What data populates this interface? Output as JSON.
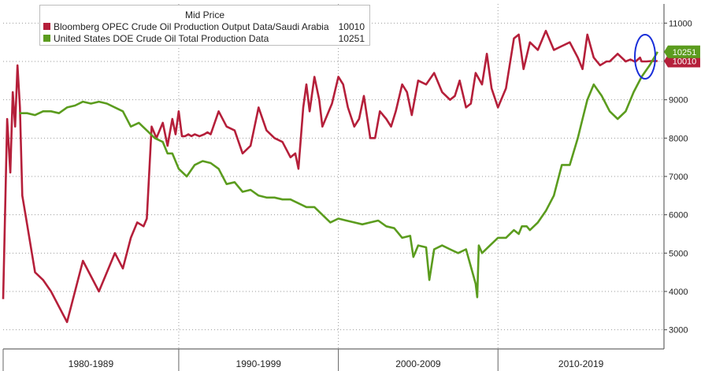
{
  "chart_data": {
    "type": "line",
    "legend_title": "Mid Price",
    "colors": {
      "saudi": "#b51f3a",
      "us": "#5b9c1e",
      "highlight": "#1a2fd9"
    },
    "yaxis": {
      "position": "right",
      "ylim": [
        2500,
        11500
      ],
      "ticks": [
        "3000",
        "4000",
        "5000",
        "6000",
        "7000",
        "8000",
        "9000",
        "10000",
        "11000"
      ]
    },
    "xaxis": {
      "xlim": [
        1979.0,
        2020.4
      ],
      "bands": [
        {
          "label": "1980-1989",
          "start": 1979.0,
          "end": 1990.0
        },
        {
          "label": "1990-1999",
          "start": 1990.0,
          "end": 2000.0
        },
        {
          "label": "2000-2009",
          "start": 2000.0,
          "end": 2010.0
        },
        {
          "label": "2010-2019",
          "start": 2010.0,
          "end": 2020.4
        }
      ]
    },
    "series": [
      {
        "name": "Bloomberg OPEC Crude Oil Production Output Data/Saudi Arabia",
        "last_value": "10010",
        "color": "#b51f3a",
        "x": [
          1979.0,
          1979.25,
          1979.45,
          1979.6,
          1979.75,
          1979.9,
          1980.05,
          1980.2,
          1980.4,
          1981.0,
          1981.5,
          1982.0,
          1983.0,
          1984.0,
          1985.0,
          1986.0,
          1986.5,
          1987.0,
          1987.4,
          1987.8,
          1988.0,
          1988.3,
          1988.6,
          1989.0,
          1989.3,
          1989.6,
          1989.8,
          1990.0,
          1990.2,
          1990.4,
          1990.6,
          1990.8,
          1991.0,
          1991.3,
          1991.6,
          1991.8,
          1992.0,
          1992.5,
          1993.0,
          1993.5,
          1994.0,
          1994.5,
          1995.0,
          1995.5,
          1996.0,
          1996.5,
          1997.0,
          1997.3,
          1997.5,
          1997.8,
          1998.0,
          1998.2,
          1998.5,
          1998.8,
          1999.0,
          1999.3,
          1999.6,
          2000.0,
          2000.3,
          2000.6,
          2001.0,
          2001.3,
          2001.6,
          2002.0,
          2002.3,
          2002.6,
          2003.0,
          2003.3,
          2003.6,
          2004.0,
          2004.3,
          2004.6,
          2005.0,
          2005.5,
          2006.0,
          2006.5,
          2007.0,
          2007.3,
          2007.6,
          2008.0,
          2008.3,
          2008.6,
          2009.0,
          2009.3,
          2009.6,
          2010.0,
          2010.5,
          2011.0,
          2011.3,
          2011.6,
          2012.0,
          2012.5,
          2013.0,
          2013.5,
          2014.0,
          2014.5,
          2015.0,
          2015.3,
          2015.6,
          2016.0,
          2016.4,
          2016.8,
          2017.0,
          2017.5,
          2018.0,
          2018.3,
          2018.6,
          2018.9,
          2019.0,
          2019.3,
          2019.6,
          2019.8,
          2020.0
        ],
        "values": [
          3800,
          8500,
          7100,
          9200,
          8300,
          9900,
          8800,
          6500,
          6000,
          4500,
          4300,
          4000,
          3200,
          4800,
          4000,
          5000,
          4600,
          5400,
          5800,
          5700,
          5900,
          8300,
          8000,
          8400,
          7800,
          8500,
          8100,
          8700,
          8050,
          8050,
          8100,
          8050,
          8100,
          8050,
          8100,
          8150,
          8100,
          8700,
          8300,
          8200,
          7600,
          7800,
          8800,
          8200,
          8000,
          7900,
          7500,
          7600,
          7200,
          8800,
          9400,
          8700,
          9600,
          9000,
          8300,
          8600,
          8900,
          9600,
          9400,
          8800,
          8300,
          8500,
          9100,
          8000,
          8000,
          8700,
          8500,
          8300,
          8700,
          9400,
          9200,
          8600,
          9500,
          9400,
          9700,
          9200,
          9000,
          9100,
          9500,
          8800,
          8900,
          9700,
          9400,
          10200,
          9300,
          8800,
          9300,
          10600,
          10700,
          9800,
          10500,
          10300,
          10800,
          10300,
          10400,
          10500,
          10100,
          9800,
          10700,
          10100,
          9900,
          10000,
          10000,
          10200,
          10000,
          10050,
          9990,
          10100,
          10000,
          10000,
          10010,
          10010,
          10010
        ]
      },
      {
        "name": "United States DOE Crude Oil Total Production Data",
        "last_value": "10251",
        "color": "#5b9c1e",
        "x": [
          1980.0,
          1980.5,
          1981.0,
          1981.5,
          1982.0,
          1982.5,
          1983.0,
          1983.5,
          1984.0,
          1984.5,
          1985.0,
          1985.5,
          1986.0,
          1986.5,
          1987.0,
          1987.5,
          1988.0,
          1988.5,
          1989.0,
          1989.3,
          1989.6,
          1990.0,
          1990.5,
          1991.0,
          1991.5,
          1992.0,
          1992.5,
          1993.0,
          1993.5,
          1994.0,
          1994.5,
          1995.0,
          1995.5,
          1996.0,
          1996.5,
          1997.0,
          1997.5,
          1998.0,
          1998.5,
          1999.0,
          1999.5,
          2000.0,
          2000.5,
          2001.0,
          2001.5,
          2002.0,
          2002.5,
          2003.0,
          2003.5,
          2004.0,
          2004.5,
          2004.7,
          2005.0,
          2005.5,
          2005.7,
          2006.0,
          2006.5,
          2007.0,
          2007.5,
          2008.0,
          2008.6,
          2008.7,
          2008.8,
          2009.0,
          2009.5,
          2010.0,
          2010.5,
          2011.0,
          2011.3,
          2011.5,
          2011.8,
          2012.0,
          2012.5,
          2013.0,
          2013.5,
          2014.0,
          2014.5,
          2015.0,
          2015.3,
          2015.6,
          2016.0,
          2016.5,
          2017.0,
          2017.5,
          2018.0,
          2018.5,
          2019.0,
          2019.5,
          2020.0
        ],
        "values": [
          8650,
          8650,
          8600,
          8700,
          8700,
          8650,
          8800,
          8850,
          8950,
          8900,
          8950,
          8900,
          8800,
          8700,
          8300,
          8400,
          8200,
          8000,
          7900,
          7600,
          7600,
          7200,
          7000,
          7300,
          7400,
          7350,
          7200,
          6800,
          6850,
          6600,
          6650,
          6500,
          6450,
          6450,
          6400,
          6400,
          6300,
          6200,
          6200,
          6000,
          5800,
          5900,
          5850,
          5800,
          5750,
          5800,
          5850,
          5700,
          5650,
          5400,
          5450,
          4900,
          5200,
          5150,
          4300,
          5100,
          5200,
          5100,
          5000,
          5100,
          4200,
          3850,
          5200,
          5000,
          5200,
          5400,
          5400,
          5600,
          5500,
          5700,
          5700,
          5600,
          5800,
          6100,
          6500,
          7300,
          7300,
          8000,
          8500,
          9000,
          9400,
          9100,
          8700,
          8500,
          8700,
          9200,
          9600,
          9900,
          10251
        ]
      }
    ]
  }
}
